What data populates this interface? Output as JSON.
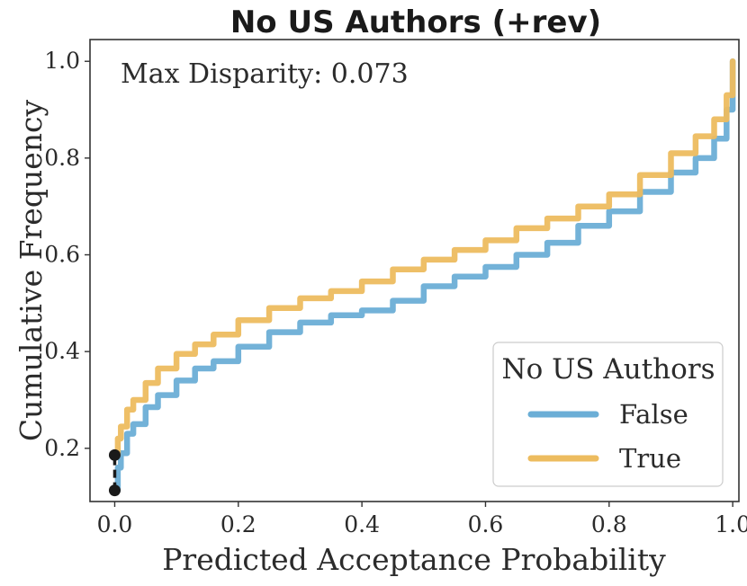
{
  "chart_data": {
    "type": "line",
    "title": "No US Authors (+rev)",
    "xlabel": "Predicted Acceptance Probability",
    "ylabel": "Cumulative Frequency",
    "xlim": [
      -0.04,
      1.01
    ],
    "ylim": [
      0.09,
      1.045
    ],
    "xticks": [
      0.0,
      0.2,
      0.4,
      0.6,
      0.8,
      1.0
    ],
    "xtick_labels": [
      "0.0",
      "0.2",
      "0.4",
      "0.6",
      "0.8",
      "1.0"
    ],
    "yticks": [
      0.2,
      0.4,
      0.6,
      0.8,
      1.0
    ],
    "ytick_labels": [
      "0.2",
      "0.4",
      "0.6",
      "0.8",
      "1.0"
    ],
    "grid": false,
    "annotation": "Max Disparity: 0.073",
    "legend": {
      "title": "No US Authors",
      "placement": "lower right"
    },
    "disparity_marker": {
      "x": 0.0,
      "y_low": 0.113,
      "y_high": 0.186
    },
    "series": [
      {
        "name": "False",
        "color": "#6baed6",
        "x": [
          0.0,
          0.005,
          0.01,
          0.02,
          0.03,
          0.05,
          0.07,
          0.1,
          0.13,
          0.16,
          0.2,
          0.25,
          0.3,
          0.35,
          0.4,
          0.45,
          0.5,
          0.55,
          0.6,
          0.65,
          0.7,
          0.75,
          0.8,
          0.85,
          0.9,
          0.94,
          0.97,
          0.99,
          1.0
        ],
        "y": [
          0.113,
          0.16,
          0.19,
          0.23,
          0.25,
          0.285,
          0.31,
          0.34,
          0.365,
          0.38,
          0.41,
          0.44,
          0.46,
          0.475,
          0.485,
          0.505,
          0.535,
          0.555,
          0.575,
          0.6,
          0.625,
          0.66,
          0.69,
          0.73,
          0.77,
          0.8,
          0.84,
          0.9,
          1.0
        ]
      },
      {
        "name": "True",
        "color": "#edbc5f",
        "x": [
          0.0,
          0.005,
          0.01,
          0.02,
          0.03,
          0.05,
          0.07,
          0.1,
          0.13,
          0.16,
          0.2,
          0.25,
          0.3,
          0.35,
          0.4,
          0.45,
          0.5,
          0.55,
          0.6,
          0.65,
          0.7,
          0.75,
          0.8,
          0.85,
          0.9,
          0.94,
          0.97,
          0.99,
          1.0
        ],
        "y": [
          0.186,
          0.22,
          0.245,
          0.28,
          0.3,
          0.335,
          0.365,
          0.395,
          0.415,
          0.435,
          0.465,
          0.49,
          0.51,
          0.525,
          0.545,
          0.57,
          0.59,
          0.61,
          0.63,
          0.655,
          0.675,
          0.7,
          0.725,
          0.765,
          0.81,
          0.845,
          0.88,
          0.93,
          1.0
        ]
      }
    ]
  }
}
